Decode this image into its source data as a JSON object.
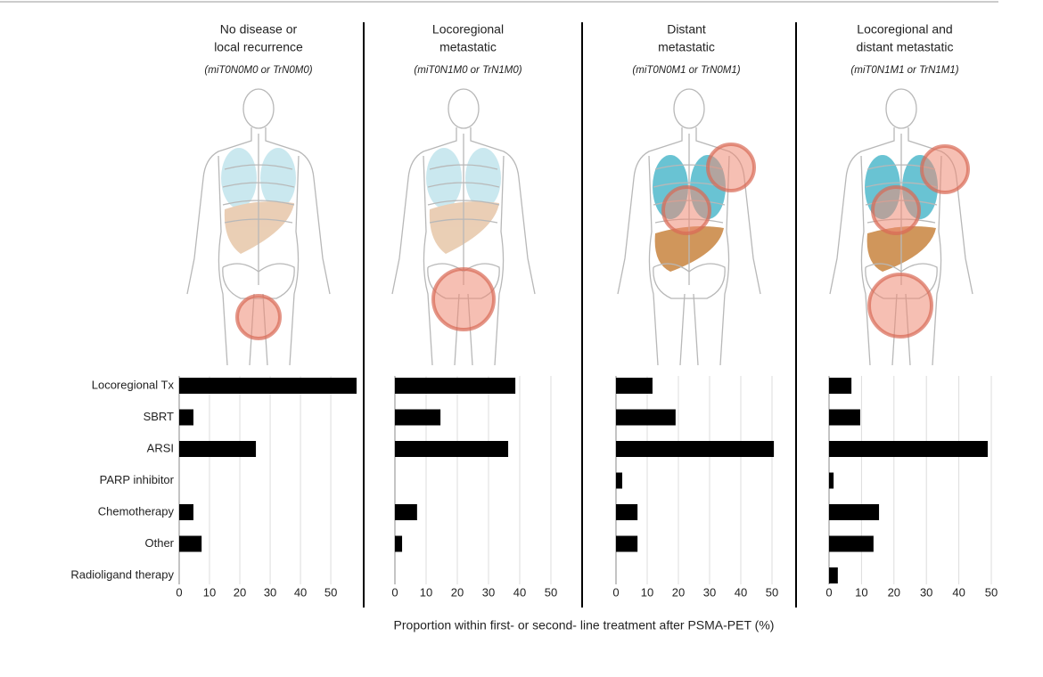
{
  "chart_data": [
    {
      "type": "hbar",
      "title": [
        "No disease or",
        "local recurrence"
      ],
      "subtitle": "(miT0N0M0 or TrN0M0)",
      "categories": [
        "Locoregional Tx",
        "SBRT",
        "ARSI",
        "PARP inhibitor",
        "Chemotherapy",
        "Other",
        "Radioligand therapy"
      ],
      "values": [
        58.5,
        4.7,
        25.3,
        0,
        4.7,
        7.4,
        0
      ],
      "color": "#000000",
      "xlim": [
        0,
        58.5
      ],
      "xticks": [
        0,
        10,
        20,
        30,
        40,
        50
      ],
      "grid": true,
      "xlabel": "Proportion within first- or second- line treatment after PSMA-PET (%)"
    },
    {
      "type": "hbar",
      "title": [
        "Locoregional",
        "metastatic"
      ],
      "subtitle": "(miT0N1M0 or TrN1M0)",
      "values": [
        38.6,
        14.6,
        36.3,
        0,
        7.1,
        2.3,
        0
      ],
      "color": "#000000",
      "xlim": [
        0,
        55
      ],
      "xticks": [
        0,
        10,
        20,
        30,
        40,
        50
      ],
      "grid": true
    },
    {
      "type": "hbar",
      "title": [
        "Distant",
        "metastatic"
      ],
      "subtitle": "(miT0N0M1 or TrN0M1)",
      "values": [
        11.7,
        19.1,
        50.6,
        2.0,
        6.9,
        6.9,
        0
      ],
      "color": "#000000",
      "xlim": [
        0,
        55
      ],
      "xticks": [
        0,
        10,
        20,
        30,
        40,
        50
      ],
      "grid": true
    },
    {
      "type": "hbar",
      "title": [
        "Locoregional and",
        "distant metastatic"
      ],
      "subtitle": "(miT0N1M1 or TrN1M1)",
      "values": [
        6.9,
        9.6,
        48.9,
        1.4,
        15.4,
        13.7,
        2.7
      ],
      "color": "#000000",
      "xlim": [
        0,
        50
      ],
      "xticks": [
        0,
        10,
        20,
        30,
        40,
        50
      ],
      "grid": true
    }
  ]
}
